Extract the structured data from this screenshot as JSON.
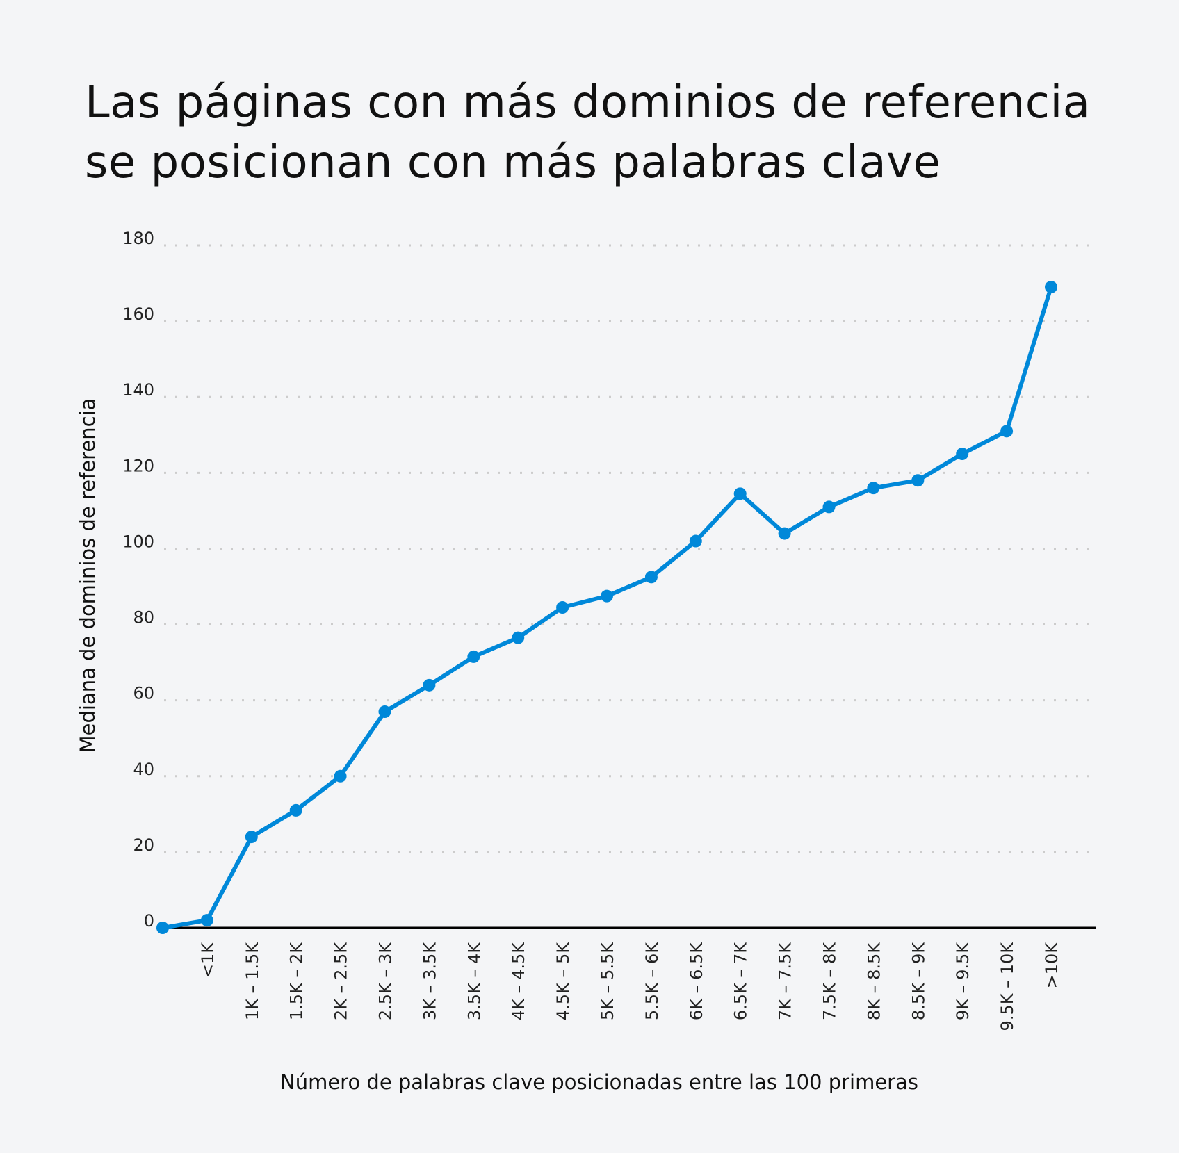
{
  "chart_data": {
    "type": "line",
    "title": "Las páginas con más dominios de referencia se posicionan con más palabras clave",
    "title_lines": [
      "Las páginas con más dominios de referencia",
      "se posicionan con más palabras clave"
    ],
    "xlabel": "Número de palabras clave posicionadas entre las 100 primeras",
    "ylabel": "Mediana de dominios de referencia",
    "categories": [
      "",
      "<1K",
      "1K – 1.5K",
      "1.5K – 2K",
      "2K – 2.5K",
      "2.5K – 3K",
      "3K – 3.5K",
      "3.5K – 4K",
      "4K – 4.5K",
      "4.5K – 5K",
      "5K – 5.5K",
      "5.5K – 6K",
      "6K – 6.5K",
      "6.5K – 7K",
      "7K – 7.5K",
      "7.5K – 8K",
      "8K – 8.5K",
      "8.5K – 9K",
      "9K – 9.5K",
      "9.5K – 10K",
      ">10K"
    ],
    "values": [
      0,
      2,
      24,
      31,
      40,
      57,
      64,
      71.5,
      76.5,
      84.5,
      87.5,
      92.5,
      102,
      114.5,
      104,
      111,
      116,
      118,
      125,
      131,
      169
    ],
    "ylim": [
      0,
      180
    ],
    "yticks": [
      0,
      20,
      40,
      60,
      80,
      100,
      120,
      140,
      160,
      180
    ],
    "grid": "horizontal dotted",
    "legend": "none",
    "colors": {
      "line": "#0088d9",
      "grid": "#cccccc",
      "axis": "#000000",
      "background": "#f4f5f7"
    }
  }
}
